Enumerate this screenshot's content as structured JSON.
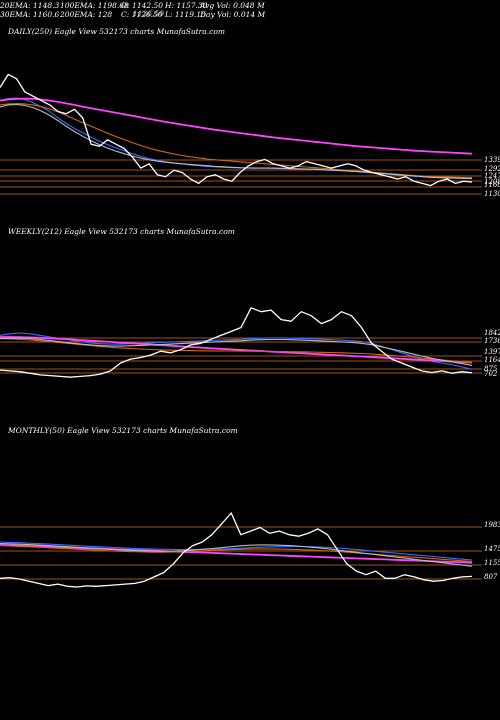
{
  "header": {
    "row1": {
      "ema20": "20EMA: 1148.3",
      "ema100": "100EMA: 1198.68",
      "open": "O: 1142.50",
      "high": "H: 1157.30",
      "avgvol": "Avg Vol: 0.048 M"
    },
    "row2": {
      "ema30": "30EMA: 1160.6",
      "ema200": "200EMA: 128",
      "close": "C: 1126.50",
      "low": "L: 1119.15",
      "dayvol": "Day Vol: 0.014 M"
    },
    "overlap_c": "1126.50"
  },
  "panels": {
    "daily": {
      "title": "DAILY(250) Eagle   View  532173 charts MunafaSutra.com"
    },
    "weekly": {
      "title": "WEEKLY(212) Eagle   View  532173 charts MunafaSutra.com"
    },
    "monthly": {
      "title": "MONTHLY(50) Eagle   View  532173 charts MunafaSutra.com"
    }
  },
  "chart_data": [
    {
      "type": "line",
      "title": "DAILY(250) Eagle View 532173 charts MunafaSutra.com",
      "level_labels": [
        "1339",
        "1292",
        "1247",
        "1208",
        "1168",
        "1130"
      ],
      "series": [
        {
          "name": "price",
          "color": "#ffffff",
          "values": [
            1560,
            1620,
            1600,
            1540,
            1520,
            1500,
            1480,
            1450,
            1440,
            1460,
            1420,
            1300,
            1290,
            1320,
            1300,
            1280,
            1240,
            1190,
            1210,
            1160,
            1150,
            1180,
            1170,
            1140,
            1120,
            1150,
            1160,
            1140,
            1130,
            1170,
            1200,
            1220,
            1230,
            1210,
            1200,
            1190,
            1200,
            1220,
            1210,
            1200,
            1190,
            1200,
            1210,
            1200,
            1180,
            1170,
            1160,
            1150,
            1140,
            1150,
            1130,
            1120,
            1110,
            1130,
            1140,
            1120,
            1130,
            1126
          ]
        },
        {
          "name": "ema-blue",
          "color": "#3b6cff",
          "values": [
            1500,
            1510,
            1512,
            1505,
            1490,
            1472,
            1450,
            1420,
            1395,
            1372,
            1352,
            1332,
            1314,
            1298,
            1283,
            1270,
            1256,
            1244,
            1234,
            1226,
            1219,
            1214,
            1209,
            1205,
            1201,
            1198,
            1196,
            1194,
            1192,
            1191,
            1190,
            1190,
            1190,
            1189,
            1188,
            1187,
            1186,
            1185,
            1184,
            1182,
            1180,
            1178,
            1176,
            1174,
            1171,
            1168,
            1165,
            1162,
            1159,
            1156,
            1153,
            1150,
            1148,
            1147,
            1146,
            1145,
            1145,
            1144
          ]
        },
        {
          "name": "ema-magenta",
          "color": "#ff44ff",
          "values": [
            1500,
            1505,
            1508,
            1509,
            1508,
            1505,
            1500,
            1494,
            1487,
            1480,
            1472,
            1465,
            1458,
            1451,
            1444,
            1437,
            1430,
            1423,
            1416,
            1409,
            1402,
            1396,
            1390,
            1384,
            1378,
            1372,
            1366,
            1361,
            1356,
            1351,
            1346,
            1341,
            1336,
            1331,
            1327,
            1323,
            1319,
            1315,
            1311,
            1307,
            1303,
            1299,
            1295,
            1291,
            1288,
            1285,
            1282,
            1279,
            1276,
            1273,
            1270,
            1268,
            1266,
            1264,
            1262,
            1260,
            1258,
            1256
          ]
        },
        {
          "name": "ema-orange",
          "color": "#cc6a1a",
          "values": [
            1480,
            1485,
            1486,
            1485,
            1480,
            1472,
            1462,
            1448,
            1432,
            1415,
            1398,
            1382,
            1366,
            1350,
            1335,
            1321,
            1307,
            1294,
            1282,
            1272,
            1263,
            1255,
            1248,
            1242,
            1237,
            1232,
            1228,
            1225,
            1222,
            1219,
            1216,
            1213,
            1210,
            1207,
            1204,
            1201,
            1198,
            1195,
            1192,
            1189,
            1186,
            1183,
            1180,
            1177,
            1174,
            1171,
            1168,
            1165,
            1162,
            1159,
            1156,
            1154,
            1152,
            1150,
            1149,
            1148,
            1147,
            1146
          ]
        },
        {
          "name": "ema-white",
          "color": "#bbbbbb",
          "values": [
            1470,
            1480,
            1482,
            1478,
            1468,
            1452,
            1432,
            1408,
            1382,
            1358,
            1336,
            1316,
            1298,
            1282,
            1268,
            1256,
            1245,
            1236,
            1228,
            1222,
            1217,
            1213,
            1210,
            1207,
            1204,
            1201,
            1198,
            1196,
            1194,
            1192,
            1191,
            1190,
            1190,
            1190,
            1189,
            1188,
            1187,
            1186,
            1185,
            1183,
            1181,
            1179,
            1177,
            1175,
            1172,
            1169,
            1166,
            1163,
            1160,
            1157,
            1154,
            1151,
            1148,
            1146,
            1145,
            1144,
            1143,
            1142
          ]
        }
      ]
    },
    {
      "type": "line",
      "title": "WEEKLY(212) Eagle View 532173 charts MunafaSutra.com",
      "level_labels": [
        "1842",
        "1736",
        "1397",
        "1164",
        "875",
        "702"
      ],
      "series": [
        {
          "name": "price",
          "color": "#ffffff",
          "values": [
            1160,
            1150,
            1140,
            1120,
            1100,
            1090,
            1080,
            1070,
            1080,
            1090,
            1110,
            1150,
            1250,
            1300,
            1320,
            1350,
            1400,
            1380,
            1420,
            1480,
            1500,
            1550,
            1600,
            1650,
            1700,
            1950,
            1900,
            1920,
            1800,
            1780,
            1900,
            1850,
            1750,
            1800,
            1900,
            1850,
            1700,
            1500,
            1400,
            1300,
            1250,
            1200,
            1150,
            1130,
            1150,
            1120,
            1140,
            1126
          ]
        },
        {
          "name": "ema-blue",
          "color": "#3b6cff",
          "values": [
            1600,
            1620,
            1630,
            1620,
            1600,
            1580,
            1560,
            1540,
            1520,
            1505,
            1495,
            1490,
            1490,
            1495,
            1500,
            1505,
            1510,
            1515,
            1520,
            1525,
            1530,
            1535,
            1540,
            1545,
            1550,
            1560,
            1565,
            1568,
            1568,
            1565,
            1562,
            1558,
            1552,
            1546,
            1540,
            1532,
            1524,
            1500,
            1460,
            1420,
            1380,
            1340,
            1300,
            1270,
            1250,
            1230,
            1200,
            1170
          ]
        },
        {
          "name": "ema-magenta",
          "color": "#ff44ff",
          "values": [
            1580,
            1580,
            1578,
            1574,
            1569,
            1563,
            1556,
            1549,
            1541,
            1533,
            1525,
            1517,
            1509,
            1501,
            1493,
            1485,
            1477,
            1469,
            1461,
            1453,
            1445,
            1437,
            1430,
            1423,
            1416,
            1409,
            1402,
            1395,
            1388,
            1381,
            1374,
            1367,
            1360,
            1353,
            1346,
            1339,
            1332,
            1325,
            1318,
            1311,
            1304,
            1297,
            1290,
            1283,
            1276,
            1269,
            1262,
            1255
          ]
        },
        {
          "name": "ema-orange",
          "color": "#cc6a1a",
          "values": [
            1560,
            1556,
            1550,
            1542,
            1532,
            1520,
            1508,
            1496,
            1484,
            1472,
            1461,
            1451,
            1442,
            1434,
            1427,
            1421,
            1416,
            1412,
            1409,
            1407,
            1405,
            1404,
            1403,
            1402,
            1401,
            1400,
            1399,
            1398,
            1396,
            1394,
            1392,
            1389,
            1386,
            1383,
            1379,
            1375,
            1370,
            1364,
            1356,
            1347,
            1337,
            1326,
            1314,
            1302,
            1290,
            1278,
            1266,
            1254
          ]
        },
        {
          "name": "ema-white",
          "color": "#bbbbbb",
          "values": [
            1560,
            1565,
            1566,
            1560,
            1548,
            1534,
            1520,
            1505,
            1492,
            1480,
            1471,
            1466,
            1465,
            1468,
            1473,
            1478,
            1484,
            1490,
            1496,
            1502,
            1508,
            1514,
            1520,
            1526,
            1532,
            1540,
            1545,
            1548,
            1548,
            1545,
            1541,
            1536,
            1530,
            1524,
            1518,
            1510,
            1500,
            1482,
            1456,
            1428,
            1398,
            1368,
            1338,
            1310,
            1286,
            1264,
            1242,
            1220
          ]
        }
      ]
    },
    {
      "type": "line",
      "title": "MONTHLY(50) Eagle View 532173 charts MunafaSutra.com",
      "level_labels": [
        "1983",
        "1475",
        "1155",
        "807"
      ],
      "series": [
        {
          "name": "price",
          "color": "#ffffff",
          "values": [
            1100,
            1110,
            1090,
            1060,
            1030,
            1000,
            1020,
            990,
            980,
            995,
            990,
            1000,
            1010,
            1020,
            1030,
            1060,
            1120,
            1180,
            1300,
            1450,
            1550,
            1600,
            1700,
            1850,
            2000,
            1700,
            1750,
            1800,
            1720,
            1750,
            1700,
            1680,
            1720,
            1780,
            1700,
            1500,
            1300,
            1200,
            1150,
            1200,
            1100,
            1100,
            1150,
            1120,
            1080,
            1060,
            1070,
            1100,
            1120,
            1126
          ]
        },
        {
          "name": "ema-blue",
          "color": "#3b6cff",
          "values": [
            1600,
            1595,
            1590,
            1584,
            1578,
            1571,
            1564,
            1557,
            1550,
            1543,
            1536,
            1530,
            1524,
            1518,
            1512,
            1507,
            1503,
            1500,
            1498,
            1497,
            1497,
            1498,
            1500,
            1503,
            1508,
            1515,
            1522,
            1528,
            1533,
            1536,
            1538,
            1538,
            1536,
            1532,
            1526,
            1518,
            1508,
            1496,
            1484,
            1472,
            1460,
            1448,
            1436,
            1424,
            1412,
            1400,
            1388,
            1376,
            1364,
            1352
          ]
        },
        {
          "name": "ema-magenta",
          "color": "#ff44ff",
          "values": [
            1560,
            1555,
            1550,
            1545,
            1540,
            1535,
            1530,
            1525,
            1520,
            1515,
            1510,
            1505,
            1500,
            1495,
            1490,
            1485,
            1480,
            1475,
            1470,
            1465,
            1460,
            1455,
            1450,
            1445,
            1440,
            1435,
            1430,
            1425,
            1420,
            1415,
            1410,
            1405,
            1400,
            1395,
            1390,
            1385,
            1380,
            1375,
            1370,
            1365,
            1360,
            1355,
            1350,
            1345,
            1340,
            1335,
            1330,
            1325,
            1320,
            1315
          ]
        },
        {
          "name": "ema-orange",
          "color": "#cc6a1a",
          "values": [
            1550,
            1545,
            1540,
            1534,
            1528,
            1522,
            1515,
            1508,
            1501,
            1494,
            1487,
            1481,
            1475,
            1470,
            1466,
            1462,
            1460,
            1460,
            1462,
            1466,
            1472,
            1478,
            1484,
            1490,
            1496,
            1500,
            1503,
            1505,
            1505,
            1503,
            1500,
            1496,
            1491,
            1485,
            1478,
            1470,
            1461,
            1451,
            1441,
            1431,
            1421,
            1411,
            1401,
            1391,
            1381,
            1371,
            1361,
            1351,
            1341,
            1331
          ]
        },
        {
          "name": "ema-white",
          "color": "#bbbbbb",
          "values": [
            1580,
            1575,
            1570,
            1564,
            1557,
            1550,
            1543,
            1535,
            1527,
            1519,
            1511,
            1503,
            1496,
            1489,
            1483,
            1478,
            1475,
            1474,
            1476,
            1481,
            1490,
            1500,
            1510,
            1522,
            1535,
            1548,
            1556,
            1560,
            1560,
            1556,
            1550,
            1542,
            1532,
            1520,
            1506,
            1490,
            1474,
            1458,
            1442,
            1426,
            1410,
            1394,
            1378,
            1362,
            1346,
            1330,
            1314,
            1298,
            1282,
            1266
          ]
        }
      ]
    }
  ]
}
